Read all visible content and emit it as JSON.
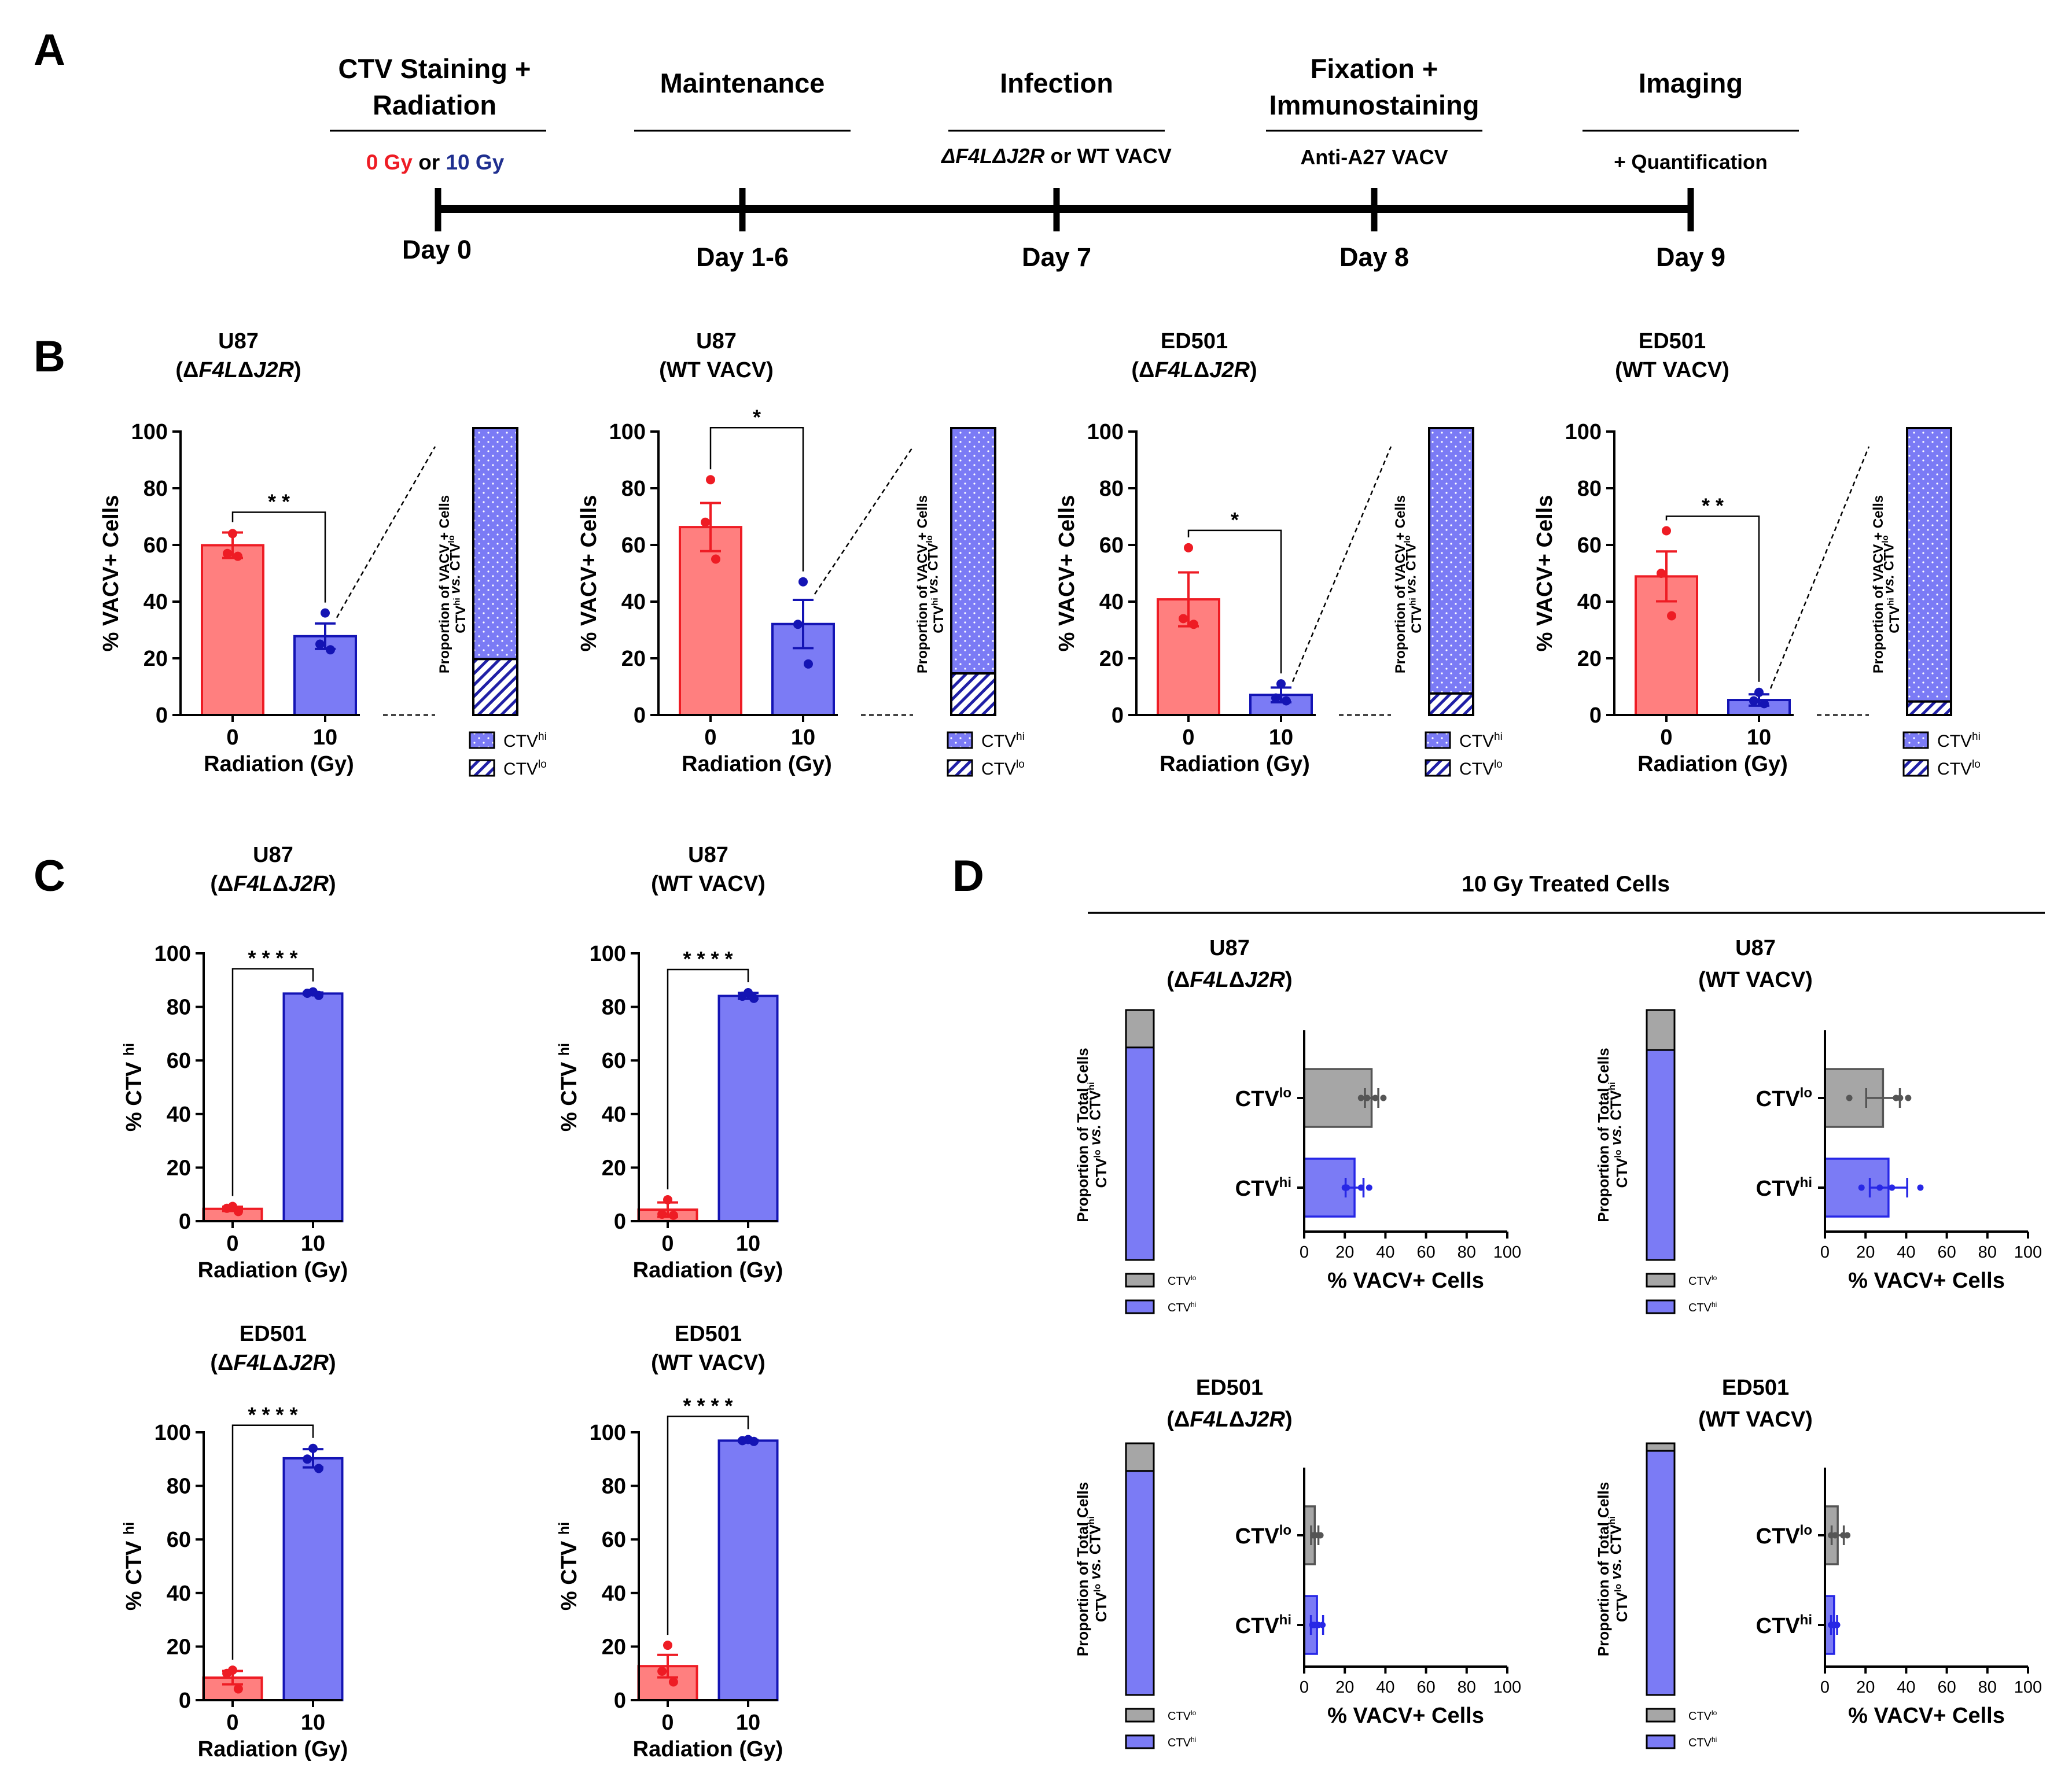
{
  "colors": {
    "red": "#ee1c24",
    "red_fill": "#ff7f7f",
    "blue": "#1414b4",
    "blue_fill": "#7b7bf5",
    "blue_dark": "#1f1fa6",
    "gray_fill": "#a6a6a6",
    "gray_edge": "#555555",
    "day7": "#4472c4",
    "pt_blue": "#2727e6"
  },
  "panels": {
    "A": "A",
    "B": "B",
    "C": "C",
    "D": "D"
  },
  "timeline": {
    "stages": [
      {
        "title": [
          "CTV Staining +",
          "Radiation"
        ],
        "day": "Day 0"
      },
      {
        "title": [
          "Maintenance"
        ],
        "day": "Day 1-6"
      },
      {
        "title": [
          "Infection"
        ],
        "day": "Day 7"
      },
      {
        "title": [
          "Fixation +",
          "Immunostaining"
        ],
        "day": "Day 8"
      },
      {
        "title": [
          "Imaging"
        ],
        "day": "Day 9"
      }
    ],
    "sub_radiation": {
      "gy0": "0 Gy",
      "or": "or",
      "gy10": "10 Gy"
    },
    "sub_infection": {
      "mut": "ΔF4LΔJ2R",
      "rest": "or WT VACV"
    },
    "sub_fixation": "Anti-A27 VACV",
    "sub_imaging": "+ Quantification"
  },
  "chart_data": [
    {
      "panel": "B",
      "type": "bar",
      "title": [
        "U87",
        "(ΔF4LΔJ2R)"
      ],
      "ylabel": "% VACV+ Cells",
      "xlabel": "Radiation (Gy)",
      "categories": [
        "0",
        "10"
      ],
      "values": [
        59.9,
        27.8
      ],
      "sem": [
        4.5,
        4.5
      ],
      "points": [
        [
          64,
          57,
          56
        ],
        [
          36,
          25,
          23
        ]
      ],
      "ylim": [
        0,
        100
      ],
      "yticks": [
        0,
        20,
        40,
        60,
        80,
        100
      ],
      "sig": "* *",
      "proportion": {
        "ylabel": [
          "Proportion of VACV + Cells",
          "CTVhi vs. CTVlo"
        ],
        "hi": 80.5,
        "lo": 19.5,
        "legend": [
          "CTVhi",
          "CTVlo"
        ]
      }
    },
    {
      "panel": "B",
      "type": "bar",
      "title": [
        "U87",
        "(WT VACV)"
      ],
      "ylabel": "% VACV+ Cells",
      "xlabel": "Radiation (Gy)",
      "categories": [
        "0",
        "10"
      ],
      "values": [
        66.3,
        32.1
      ],
      "sem": [
        8.5,
        8.5
      ],
      "points": [
        [
          83,
          68,
          55
        ],
        [
          47,
          32,
          18
        ]
      ],
      "ylim": [
        0,
        100
      ],
      "yticks": [
        0,
        20,
        40,
        60,
        80,
        100
      ],
      "sig": "*",
      "proportion": {
        "ylabel": [
          "Proportion of VACV + Cells",
          "CTVhi vs. CTVlo"
        ],
        "hi": 85.5,
        "lo": 14.5,
        "legend": [
          "CTVhi",
          "CTVlo"
        ]
      }
    },
    {
      "panel": "B",
      "type": "bar",
      "title": [
        "ED501",
        "(ΔF4LΔJ2R)"
      ],
      "ylabel": "% VACV+ Cells",
      "xlabel": "Radiation (Gy)",
      "categories": [
        "0",
        "10"
      ],
      "values": [
        40.8,
        7.1
      ],
      "sem": [
        9.5,
        2.6
      ],
      "points": [
        [
          59,
          34,
          32
        ],
        [
          11,
          6,
          5
        ]
      ],
      "ylim": [
        0,
        100
      ],
      "yticks": [
        0,
        20,
        40,
        60,
        80,
        100
      ],
      "sig": "*",
      "proportion": {
        "ylabel": [
          "Proportion of VACV + Cells",
          "CTVhi vs. CTVlo"
        ],
        "hi": 92.5,
        "lo": 7.5,
        "legend": [
          "CTVhi",
          "CTVlo"
        ]
      }
    },
    {
      "panel": "B",
      "type": "bar",
      "title": [
        "ED501",
        "(WT VACV)"
      ],
      "ylabel": "% VACV+ Cells",
      "xlabel": "Radiation (Gy)",
      "categories": [
        "0",
        "10"
      ],
      "values": [
        48.9,
        5.3
      ],
      "sem": [
        8.8,
        2.0
      ],
      "points": [
        [
          65,
          50,
          35
        ],
        [
          8,
          5,
          4
        ]
      ],
      "ylim": [
        0,
        100
      ],
      "yticks": [
        0,
        20,
        40,
        60,
        80,
        100
      ],
      "sig": "* *",
      "proportion": {
        "ylabel": [
          "Proportion of VACV + Cells",
          "CTVhi vs. CTVlo"
        ],
        "hi": 95.3,
        "lo": 4.7,
        "legend": [
          "CTVhi",
          "CTVlo"
        ]
      }
    },
    {
      "panel": "C",
      "type": "bar",
      "title": [
        "U87",
        "(ΔF4LΔJ2R)"
      ],
      "ylabel": "% CTV hi",
      "xlabel": "Radiation (Gy)",
      "categories": [
        "0",
        "10"
      ],
      "values": [
        4.6,
        85.0
      ],
      "sem": [
        0.8,
        0.4
      ],
      "points": [
        [
          5.5,
          4.8,
          3.6
        ],
        [
          85.6,
          85.1,
          84.3
        ]
      ],
      "ylim": [
        0,
        100
      ],
      "yticks": [
        0,
        20,
        40,
        60,
        80,
        100
      ],
      "sig": "* * * *"
    },
    {
      "panel": "C",
      "type": "bar",
      "title": [
        "U87",
        "(WT VACV)"
      ],
      "ylabel": "% CTV hi",
      "xlabel": "Radiation (Gy)",
      "categories": [
        "0",
        "10"
      ],
      "values": [
        4.3,
        84.1
      ],
      "sem": [
        2.7,
        1.1
      ],
      "points": [
        [
          8.0,
          2.6,
          2.2
        ],
        [
          85.3,
          84.0,
          83.2
        ]
      ],
      "ylim": [
        0,
        100
      ],
      "yticks": [
        0,
        20,
        40,
        60,
        80,
        100
      ],
      "sig": "* * * *"
    },
    {
      "panel": "C",
      "type": "bar",
      "title": [
        "ED501",
        "(ΔF4LΔJ2R)"
      ],
      "ylabel": "% CTV hi",
      "xlabel": "Radiation (Gy)",
      "categories": [
        "0",
        "10"
      ],
      "values": [
        8.4,
        90.3
      ],
      "sem": [
        2.5,
        3.4
      ],
      "points": [
        [
          11.2,
          10.0,
          4.2
        ],
        [
          94.0,
          90.0,
          86.5
        ]
      ],
      "ylim": [
        0,
        100
      ],
      "yticks": [
        0,
        20,
        40,
        60,
        80,
        100
      ],
      "sig": "* * * *"
    },
    {
      "panel": "C",
      "type": "bar",
      "title": [
        "ED501",
        "(WT VACV)"
      ],
      "ylabel": "% CTV hi",
      "xlabel": "Radiation (Gy)",
      "categories": [
        "0",
        "10"
      ],
      "values": [
        12.7,
        96.9
      ],
      "sem": [
        4.2,
        0.3
      ],
      "points": [
        [
          20.5,
          10.8,
          6.8
        ],
        [
          97.3,
          96.9,
          96.6
        ]
      ],
      "ylim": [
        0,
        100
      ],
      "yticks": [
        0,
        20,
        40,
        60,
        80,
        100
      ],
      "sig": "* * * *"
    },
    {
      "panel": "D",
      "type": "bar",
      "orientation": "horizontal",
      "title": [
        "U87",
        "(ΔF4LΔJ2R)"
      ],
      "xlabel": "% VACV+ Cells",
      "categories": [
        "CTVlo",
        "CTVhi"
      ],
      "values": [
        33.2,
        24.8
      ],
      "sem": [
        3.3,
        4.4
      ],
      "points": [
        [
          39,
          35,
          31,
          28
        ],
        [
          32,
          28,
          20,
          21
        ]
      ],
      "xlim": [
        0,
        100
      ],
      "xticks": [
        0,
        20,
        40,
        60,
        80,
        100
      ],
      "proportion": {
        "ylabel": [
          "Proportion of Total Cells",
          "CTVlo vs. CTVhi"
        ],
        "lo": 15,
        "hi": 85,
        "legend": [
          "CTVlo",
          "CTVhi"
        ]
      }
    },
    {
      "panel": "D",
      "type": "bar",
      "orientation": "horizontal",
      "title": [
        "U87",
        "(WT VACV)"
      ],
      "xlabel": "% VACV+ Cells",
      "categories": [
        "CTVlo",
        "CTVhi"
      ],
      "values": [
        28.6,
        31.3
      ],
      "sem": [
        8.3,
        9.2
      ],
      "points": [
        [
          12,
          35,
          41,
          37
        ],
        [
          18,
          47,
          33,
          27
        ]
      ],
      "xlim": [
        0,
        100
      ],
      "xticks": [
        0,
        20,
        40,
        60,
        80,
        100
      ],
      "proportion": {
        "ylabel": [
          "Proportion of Total Cells",
          "CTVlo vs. CTVhi"
        ],
        "lo": 16,
        "hi": 84,
        "legend": [
          "CTVlo",
          "CTVhi"
        ]
      }
    },
    {
      "panel": "D",
      "type": "bar",
      "orientation": "horizontal",
      "title": [
        "ED501",
        "(ΔF4LΔJ2R)"
      ],
      "xlabel": "% VACV+ Cells",
      "categories": [
        "CTVlo",
        "CTVhi"
      ],
      "values": [
        5.2,
        6.3
      ],
      "sem": [
        1.8,
        3.0
      ],
      "points": [
        [
          5.5,
          7,
          8,
          4.5
        ],
        [
          4,
          9,
          7,
          5
        ]
      ],
      "xlim": [
        0,
        100
      ],
      "xticks": [
        0,
        20,
        40,
        60,
        80,
        100
      ],
      "proportion": {
        "ylabel": [
          "Proportion of Total Cells",
          "CTVlo vs. CTVhi"
        ],
        "lo": 11,
        "hi": 89,
        "legend": [
          "CTVlo",
          "CTVhi"
        ]
      }
    },
    {
      "panel": "D",
      "type": "bar",
      "orientation": "horizontal",
      "title": [
        "ED501",
        "(WT VACV)"
      ],
      "xlabel": "% VACV+ Cells",
      "categories": [
        "CTVlo",
        "CTVhi"
      ],
      "values": [
        6.3,
        4.5
      ],
      "sem": [
        3.0,
        1.5
      ],
      "points": [
        [
          5,
          9,
          11,
          3
        ],
        [
          3,
          6,
          5,
          4
        ]
      ],
      "xlim": [
        0,
        100
      ],
      "xticks": [
        0,
        20,
        40,
        60,
        80,
        100
      ],
      "proportion": {
        "ylabel": [
          "Proportion of Total Cells",
          "CTVlo vs. CTVhi"
        ],
        "lo": 3,
        "hi": 97,
        "legend": [
          "CTVlo",
          "CTVhi"
        ]
      }
    }
  ],
  "panel_d_title": "10 Gy Treated Cells"
}
